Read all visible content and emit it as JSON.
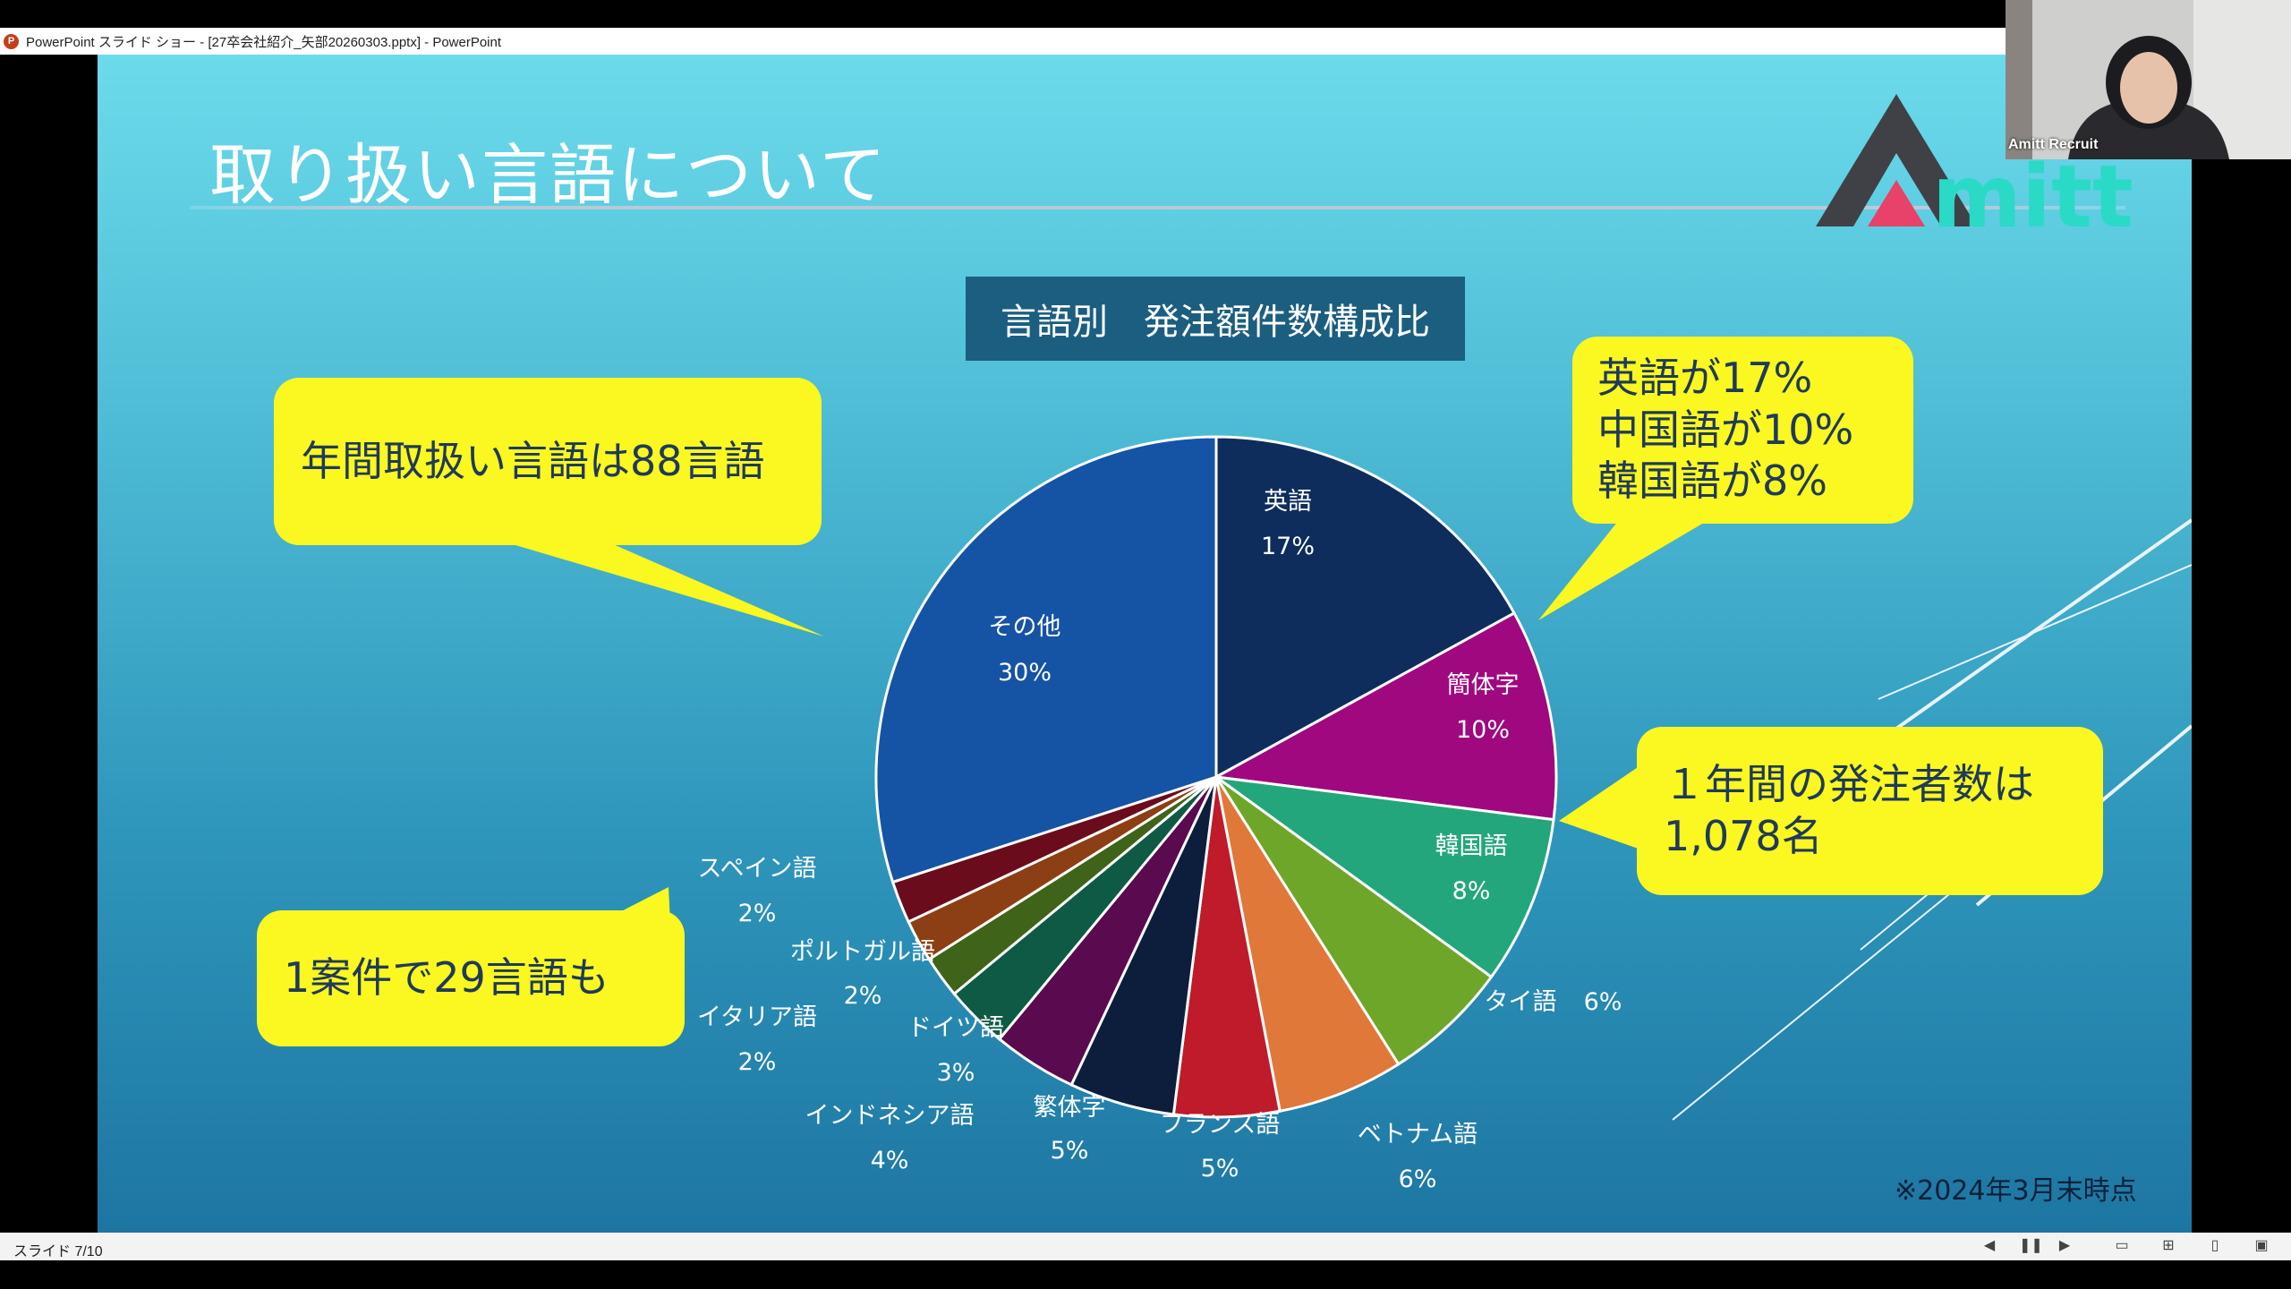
{
  "window": {
    "title": "PowerPoint スライド ショー - [27卒会社紹介_矢部20260303.pptx] - PowerPoint",
    "app_icon_letter": "P"
  },
  "slide": {
    "title": "取り扱い言語について",
    "logo_text": "mitt",
    "note": "※2024年3月末時点",
    "callouts": {
      "annual_languages": "年間取扱い言語は88言語",
      "top_share": [
        "英語が17%",
        "中国語が10%",
        "韓国語が8%"
      ],
      "orderers": [
        "１年間の発注者数は",
        "1,078名"
      ],
      "case": "1案件で29言語も"
    }
  },
  "chart_data": {
    "type": "pie",
    "title": "言語別　発注額件数構成比",
    "categories": [
      "英語",
      "簡体字",
      "韓国語",
      "タイ語",
      "ベトナム語",
      "フランス語",
      "繁体字",
      "インドネシア語",
      "ドイツ語",
      "イタリア語",
      "ポルトガル語",
      "スペイン語",
      "その他"
    ],
    "values": [
      17,
      10,
      8,
      6,
      6,
      5,
      5,
      4,
      3,
      2,
      2,
      2,
      30
    ],
    "value_labels": [
      "17%",
      "10%",
      "8%",
      "6%",
      "6%",
      "5%",
      "5%",
      "4%",
      "3%",
      "2%",
      "2%",
      "2%",
      "30%"
    ],
    "colors": [
      "#0e2d5c",
      "#a0087f",
      "#24a67c",
      "#6ea62a",
      "#e0783a",
      "#bf1b2b",
      "#0c1e3c",
      "#5a0a4e",
      "#0e5a44",
      "#3f6318",
      "#8c3f14",
      "#6a0c1c",
      "#1553a5"
    ],
    "legend": "none"
  },
  "statusbar": {
    "slide_indicator": "スライド 7/10"
  },
  "camera": {
    "name": "Amitt Recruit"
  }
}
